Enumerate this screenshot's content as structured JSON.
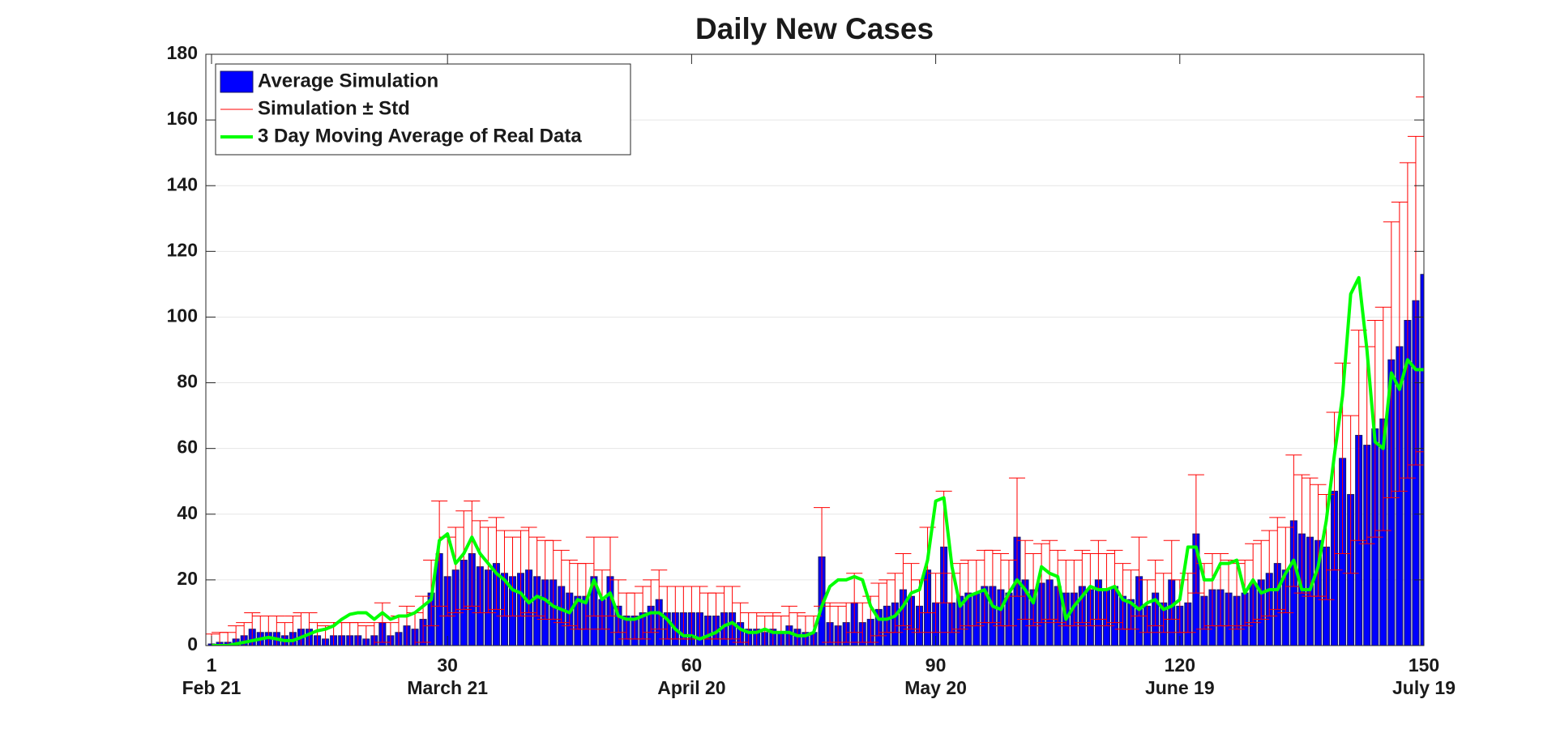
{
  "chart_data": {
    "type": "bar_errorbar_line",
    "title": "Daily New Cases",
    "x": [
      1,
      2,
      3,
      4,
      5,
      6,
      7,
      8,
      9,
      10,
      11,
      12,
      13,
      14,
      15,
      16,
      17,
      18,
      19,
      20,
      21,
      22,
      23,
      24,
      25,
      26,
      27,
      28,
      29,
      30,
      31,
      32,
      33,
      34,
      35,
      36,
      37,
      38,
      39,
      40,
      41,
      42,
      43,
      44,
      45,
      46,
      47,
      48,
      49,
      50,
      51,
      52,
      53,
      54,
      55,
      56,
      57,
      58,
      59,
      60,
      61,
      62,
      63,
      64,
      65,
      66,
      67,
      68,
      69,
      70,
      71,
      72,
      73,
      74,
      75,
      76,
      77,
      78,
      79,
      80,
      81,
      82,
      83,
      84,
      85,
      86,
      87,
      88,
      89,
      90,
      91,
      92,
      93,
      94,
      95,
      96,
      97,
      98,
      99,
      100,
      101,
      102,
      103,
      104,
      105,
      106,
      107,
      108,
      109,
      110,
      111,
      112,
      113,
      114,
      115,
      116,
      117,
      118,
      119,
      120,
      121,
      122,
      123,
      124,
      125,
      126,
      127,
      128,
      129,
      130,
      131,
      132,
      133,
      134,
      135,
      136,
      137,
      138,
      139,
      140,
      141,
      142,
      143,
      144,
      145,
      146,
      147,
      148,
      149,
      150
    ],
    "series": [
      {
        "name": "Average Simulation",
        "type": "bar",
        "color": "#0000ff",
        "edge_color": "#1a1a66",
        "values": [
          0.5,
          1,
          1,
          2,
          3,
          5,
          4,
          4,
          4,
          3,
          4,
          5,
          5,
          3,
          2,
          3,
          3,
          3,
          3,
          2,
          3,
          7,
          3,
          4,
          6,
          5,
          8,
          16,
          28,
          21,
          23,
          26,
          28,
          24,
          23,
          25,
          22,
          21,
          22,
          23,
          21,
          20,
          20,
          18,
          16,
          15,
          15,
          21,
          14,
          21,
          12,
          9,
          9,
          10,
          12,
          14,
          10,
          10,
          10,
          10,
          10,
          9,
          9,
          10,
          10,
          7,
          5,
          5,
          4,
          5,
          4,
          6,
          5,
          4,
          4,
          27,
          7,
          6,
          7,
          13,
          7,
          8,
          11,
          12,
          13,
          17,
          15,
          12,
          23,
          13,
          30,
          13,
          15,
          16,
          16,
          18,
          18,
          17,
          16,
          33,
          20,
          17,
          19,
          20,
          18,
          16,
          16,
          18,
          17,
          20,
          17,
          18,
          15,
          14,
          21,
          12,
          16,
          13,
          20,
          12,
          13,
          34,
          15,
          17,
          17,
          16,
          15,
          16,
          19,
          20,
          22,
          25,
          23,
          38,
          34,
          33,
          32,
          30,
          47,
          57,
          46,
          64,
          61,
          66,
          69,
          87,
          91,
          99,
          105,
          113
        ],
        "errors": [
          3,
          3,
          3,
          4,
          4,
          5,
          5,
          5,
          5,
          4,
          5,
          5,
          5,
          4,
          4,
          4,
          4,
          4,
          4,
          4,
          4,
          6,
          4,
          5,
          6,
          5,
          7,
          10,
          16,
          12,
          13,
          15,
          16,
          14,
          13,
          14,
          13,
          12,
          13,
          13,
          12,
          12,
          12,
          11,
          10,
          10,
          10,
          12,
          9,
          12,
          8,
          7,
          7,
          8,
          8,
          9,
          8,
          8,
          8,
          8,
          8,
          7,
          7,
          8,
          8,
          6,
          5,
          5,
          5,
          5,
          5,
          6,
          5,
          5,
          5,
          15,
          6,
          6,
          6,
          9,
          6,
          7,
          8,
          8,
          9,
          11,
          10,
          8,
          13,
          9,
          17,
          9,
          10,
          10,
          10,
          11,
          11,
          11,
          10,
          18,
          12,
          11,
          12,
          12,
          11,
          10,
          10,
          11,
          11,
          12,
          11,
          11,
          10,
          9,
          12,
          8,
          10,
          9,
          12,
          8,
          9,
          18,
          10,
          11,
          11,
          10,
          10,
          10,
          12,
          12,
          13,
          14,
          13,
          20,
          18,
          18,
          17,
          16,
          24,
          29,
          24,
          32,
          30,
          33,
          34,
          42,
          44,
          48,
          50,
          54
        ],
        "error_name": "Simulation ± Std",
        "error_color": "#ff0000"
      },
      {
        "name": "3 Day Moving Average of Real Data",
        "type": "line",
        "color": "#00ff00",
        "values": [
          0,
          0,
          0,
          0.5,
          1,
          1.5,
          2,
          2.5,
          2,
          1.5,
          1.5,
          2.5,
          3.5,
          4.5,
          5,
          6,
          8,
          9.5,
          10,
          10,
          8,
          10,
          8,
          9,
          9,
          10,
          12,
          14,
          32,
          34,
          25,
          28,
          33,
          28,
          25,
          22,
          20,
          17,
          16,
          13,
          15,
          14,
          12,
          11,
          10,
          14,
          13,
          20,
          14,
          16,
          9,
          8,
          8,
          9,
          10,
          10,
          8,
          5,
          3,
          3,
          2,
          3,
          4,
          6,
          7,
          5,
          4,
          4,
          5,
          4,
          4,
          4,
          3,
          3,
          4,
          12,
          18,
          20,
          20,
          21,
          20,
          12,
          8,
          8,
          9,
          12,
          16,
          17,
          26,
          44,
          45,
          24,
          12,
          15,
          16,
          17,
          12,
          11,
          16,
          20,
          17,
          13,
          24,
          22,
          21,
          8,
          12,
          15,
          18,
          17,
          17,
          18,
          14,
          13,
          11,
          13,
          14,
          11,
          12,
          14,
          30,
          30,
          20,
          20,
          25,
          25,
          26,
          16,
          20,
          16,
          17,
          17,
          22,
          26,
          17,
          17,
          24,
          38,
          58,
          76,
          107,
          112,
          90,
          62,
          60,
          83,
          78,
          87,
          84,
          84
        ]
      }
    ],
    "xlim": [
      0.3,
      150
    ],
    "xticks": [
      1,
      30,
      60,
      90,
      120,
      150
    ],
    "xtick_dates": [
      "Feb 21",
      "March 21",
      "April 20",
      "May 20",
      "June 19",
      "July 19"
    ],
    "ylim": [
      0,
      180
    ],
    "yticks": [
      0,
      20,
      40,
      60,
      80,
      100,
      120,
      140,
      160,
      180
    ],
    "grid": true,
    "legend": "northwest"
  }
}
